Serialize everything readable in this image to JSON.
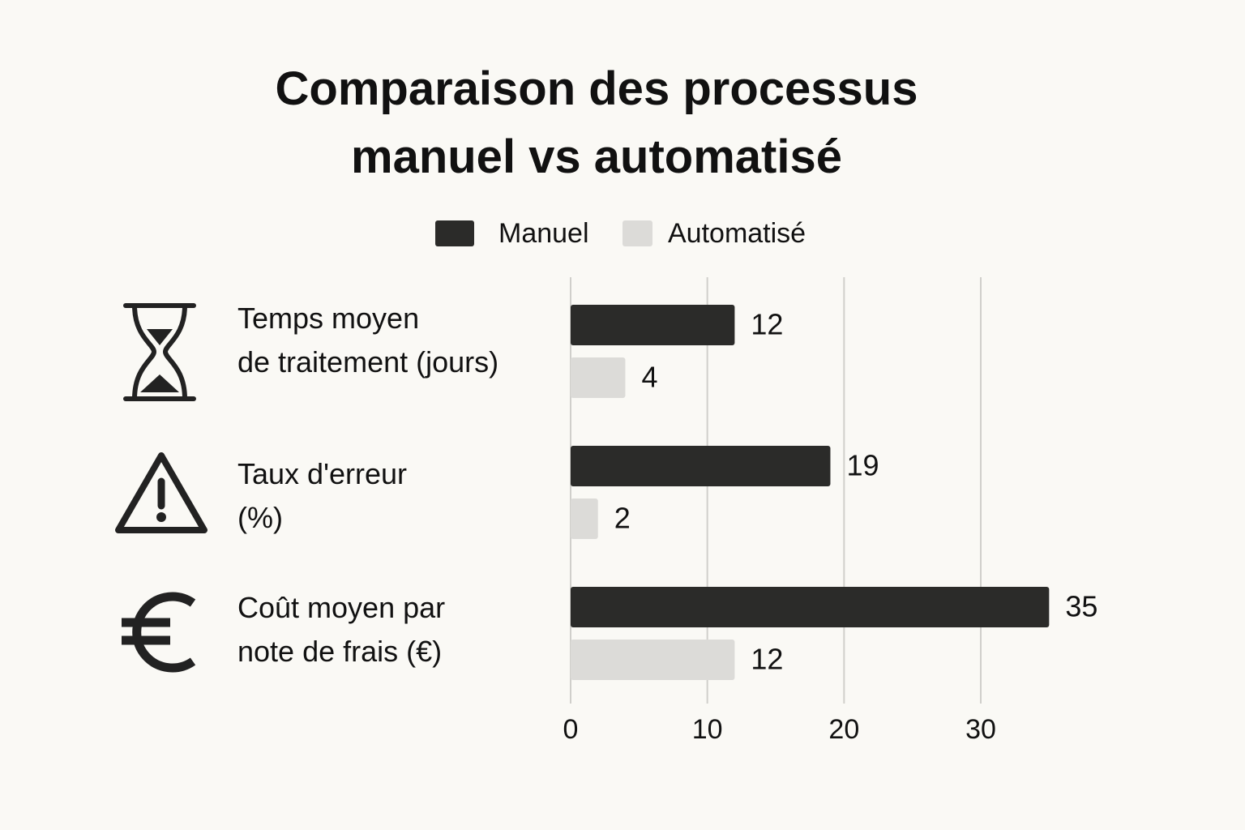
{
  "chart_data": {
    "type": "bar",
    "orientation": "horizontal",
    "title": "Comparaison des processus manuel vs automatisé",
    "categories": [
      "Temps moyen\nde traitement (jours)",
      "Taux d'erreur\n(%)",
      "Coût moyen par\nnote de frais (€)"
    ],
    "series": [
      {
        "name": "Manuel",
        "color": "#2b2b29",
        "values": [
          12,
          19,
          35
        ]
      },
      {
        "name": "Automatisé",
        "color": "#dcdbd8",
        "values": [
          4,
          2,
          12
        ]
      }
    ],
    "xlim": [
      0,
      36
    ],
    "xticks": [
      0,
      10,
      20,
      30
    ],
    "grid": true,
    "legend": "top"
  }
}
